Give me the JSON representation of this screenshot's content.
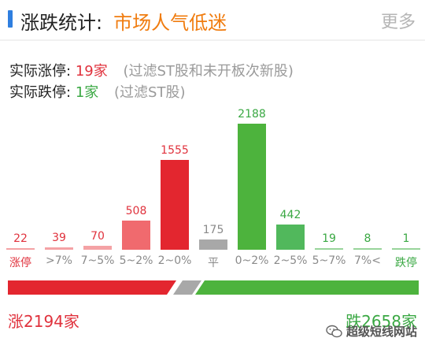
{
  "header": {
    "title": "涨跌统计:",
    "status": "市场人气低迷",
    "more_label": "更多"
  },
  "stats": {
    "limit_up_label": "实际涨停:",
    "limit_up_value": "19家",
    "limit_up_note": "(过滤ST股和未开板次新股)",
    "limit_down_label": "实际跌停:",
    "limit_down_value": "1家",
    "limit_down_note": "(过滤ST股)"
  },
  "colors": {
    "up_strong": "#e3262f",
    "up_medium": "#f06a6e",
    "up_light": "#f4a2a5",
    "flat": "#a8a8a8",
    "down_strong": "#4db33d",
    "down_medium": "#51b85c",
    "down_light": "#98d49a"
  },
  "chart_data": {
    "type": "bar",
    "categories": [
      "涨停",
      ">7%",
      "7~5%",
      "5~2%",
      "2~0%",
      "平",
      "0~2%",
      "2~5%",
      "5~7%",
      "7%<",
      "跌停"
    ],
    "values": [
      22,
      39,
      70,
      508,
      1555,
      175,
      2188,
      442,
      19,
      8,
      1
    ],
    "ylim": [
      0,
      2188
    ]
  },
  "totals": {
    "up": "涨2194家",
    "down": "跌2658家",
    "up_count": 2194,
    "flat_count": 175,
    "down_count": 2658
  },
  "watermark": {
    "text": "超级短线网站",
    "icon": "wechat-icon"
  }
}
